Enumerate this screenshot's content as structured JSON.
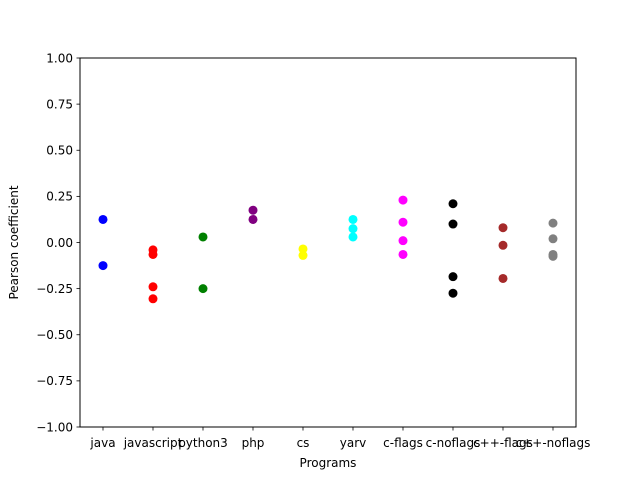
{
  "chart_data": {
    "type": "scatter",
    "title": "",
    "xlabel": "Programs",
    "ylabel": "Pearson coefficient",
    "ylim": [
      -1.0,
      1.0
    ],
    "yticks": [
      "−1.00",
      "−0.75",
      "−0.50",
      "−0.25",
      "0.00",
      "0.25",
      "0.50",
      "0.75",
      "1.00"
    ],
    "ytick_values": [
      -1.0,
      -0.75,
      -0.5,
      -0.25,
      0.0,
      0.25,
      0.5,
      0.75,
      1.0
    ],
    "categories": [
      "java",
      "javascript",
      "python3",
      "php",
      "cs",
      "yarv",
      "c-flags",
      "c-noflags",
      "c++-flags",
      "c++-noflags"
    ],
    "grid": false,
    "series": [
      {
        "category": "java",
        "color": "#0000ff",
        "values": [
          0.125,
          -0.125
        ]
      },
      {
        "category": "javascript",
        "color": "#ff0000",
        "values": [
          -0.04,
          -0.065,
          -0.24,
          -0.305
        ]
      },
      {
        "category": "python3",
        "color": "#008000",
        "values": [
          0.03,
          -0.25
        ]
      },
      {
        "category": "php",
        "color": "#800080",
        "values": [
          0.175,
          0.125
        ]
      },
      {
        "category": "cs",
        "color": "#ffff00",
        "values": [
          -0.035,
          -0.07
        ]
      },
      {
        "category": "yarv",
        "color": "#00ffff",
        "values": [
          0.125,
          0.075,
          0.03
        ]
      },
      {
        "category": "c-flags",
        "color": "#ff00ff",
        "values": [
          0.23,
          0.11,
          0.01,
          -0.065
        ]
      },
      {
        "category": "c-noflags",
        "color": "#000000",
        "values": [
          0.21,
          0.1,
          -0.185,
          -0.275
        ]
      },
      {
        "category": "c++-flags",
        "color": "#a52a2a",
        "values": [
          0.08,
          -0.015,
          -0.195
        ]
      },
      {
        "category": "c++-noflags",
        "color": "#808080",
        "values": [
          0.105,
          0.02,
          -0.065,
          -0.075
        ]
      }
    ]
  }
}
